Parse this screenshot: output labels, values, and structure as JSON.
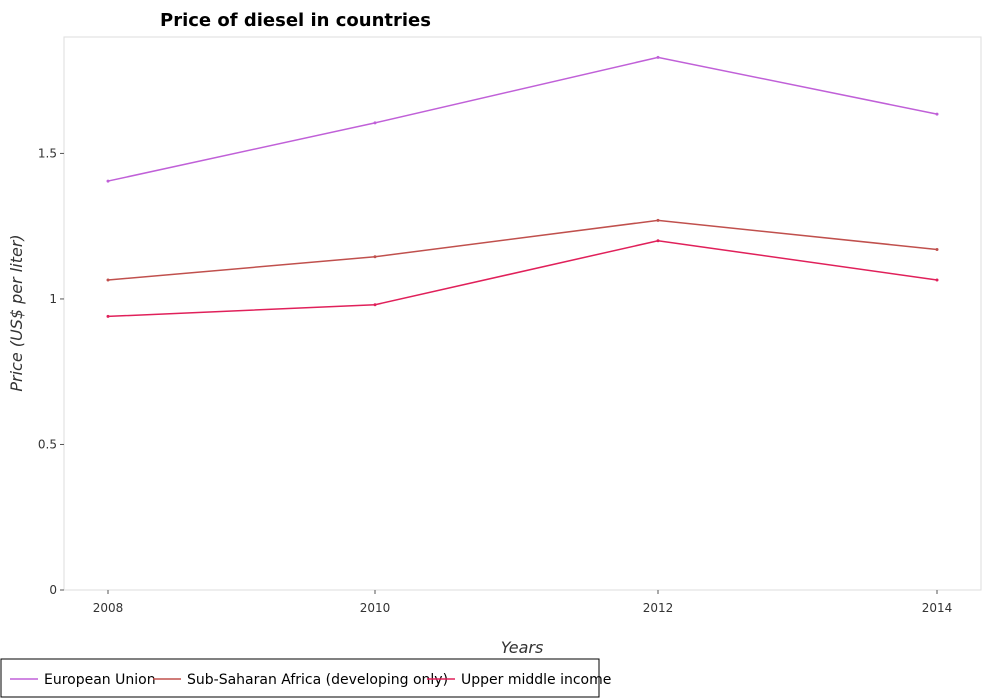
{
  "chart_data": {
    "type": "line",
    "title": "Price of diesel in countries",
    "xlabel": "Years",
    "ylabel": "Price (US$ per liter)",
    "x": [
      "2008",
      "2010",
      "2012",
      "2014"
    ],
    "ylim": [
      0,
      1.9
    ],
    "yticks": [
      0,
      0.5,
      1,
      1.5
    ],
    "ytick_labels": [
      "0",
      "0.5",
      "1",
      "1.5"
    ],
    "grid": false,
    "legend_position": "bottom-left",
    "series": [
      {
        "name": "European Union",
        "color": "#c060d8",
        "values": [
          1.405,
          1.605,
          1.83,
          1.635
        ]
      },
      {
        "name": "Sub-Saharan Africa (developing only)",
        "color": "#c0504d",
        "values": [
          1.065,
          1.145,
          1.27,
          1.17
        ]
      },
      {
        "name": "Upper middle income",
        "color": "#e0205a",
        "values": [
          0.94,
          0.98,
          1.2,
          1.065
        ]
      }
    ]
  }
}
